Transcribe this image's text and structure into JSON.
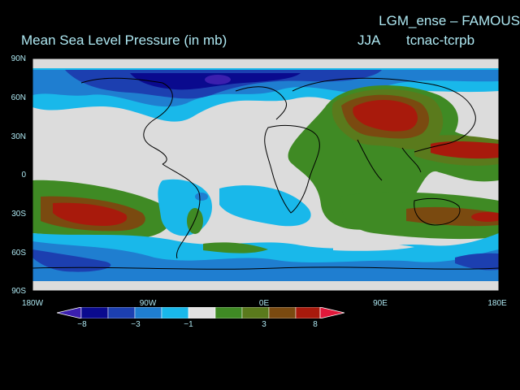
{
  "header": {
    "model_title": "LGM_ense – FAMOUS",
    "main_title": "Mean Sea Level Pressure (in mb)",
    "season": "JJA",
    "experiment": "tcnac-tcrpb"
  },
  "axes": {
    "lat_labels": [
      "90N",
      "60N",
      "30N",
      "0",
      "30S",
      "60S",
      "90S"
    ],
    "lon_labels": [
      "180W",
      "90W",
      "0E",
      "90E",
      "180E"
    ]
  },
  "colorbar": {
    "labels": [
      "−8",
      "−3",
      "−1",
      "3",
      "8"
    ],
    "colors": [
      "#3b1fae",
      "#0a0a8e",
      "#1c3fb0",
      "#1f7ed0",
      "#19b8ea",
      "#e2e2e2",
      "#3f8a24",
      "#5a7a1c",
      "#7a4a10",
      "#a81a0c",
      "#e0183a"
    ]
  },
  "map_colors": {
    "neutral": "#dcdcdc",
    "ocean_border": "#000000",
    "coast": "#000000"
  }
}
